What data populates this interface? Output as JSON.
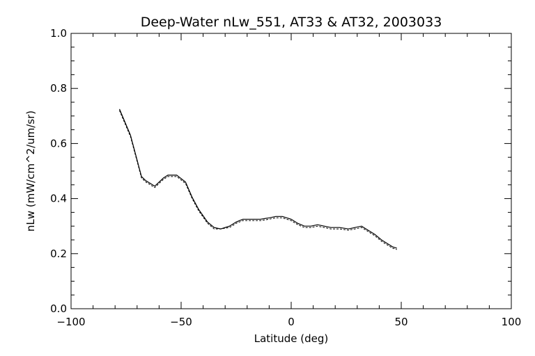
{
  "chart_data": {
    "type": "line",
    "title": "Deep-Water nLw_551, AT33 & AT32, 2003033",
    "xlabel": "Latitude (deg)",
    "ylabel": "nLw (mW/cm^2/um/sr)",
    "xlim": [
      -100,
      100
    ],
    "ylim": [
      0.0,
      1.0
    ],
    "x_ticks": [
      -100,
      -50,
      0,
      50,
      100
    ],
    "y_ticks": [
      0.0,
      0.2,
      0.4,
      0.6,
      0.8,
      1.0
    ],
    "x_tick_labels": [
      "−100",
      "−50",
      "0",
      "50",
      "100"
    ],
    "y_tick_labels": [
      "0.0",
      "0.2",
      "0.4",
      "0.6",
      "0.8",
      "1.0"
    ],
    "grid": false,
    "legend": "none",
    "series": [
      {
        "style": "solid",
        "x": [
          -78,
          -73,
          -70,
          -68,
          -66,
          -64,
          -62,
          -60,
          -58,
          -56,
          -52,
          -48,
          -45,
          -42,
          -38,
          -35,
          -32,
          -28,
          -25,
          -22,
          -18,
          -14,
          -10,
          -7,
          -4,
          -2,
          0,
          3,
          6,
          9,
          12,
          15,
          18,
          22,
          26,
          29,
          32,
          34,
          38,
          41,
          44,
          46,
          48
        ],
        "y": [
          0.725,
          0.63,
          0.54,
          0.48,
          0.465,
          0.455,
          0.445,
          0.46,
          0.475,
          0.485,
          0.485,
          0.46,
          0.405,
          0.36,
          0.315,
          0.295,
          0.29,
          0.3,
          0.315,
          0.325,
          0.325,
          0.325,
          0.33,
          0.335,
          0.335,
          0.33,
          0.325,
          0.31,
          0.3,
          0.3,
          0.305,
          0.3,
          0.295,
          0.295,
          0.29,
          0.295,
          0.3,
          0.29,
          0.27,
          0.25,
          0.235,
          0.225,
          0.22
        ]
      },
      {
        "style": "dashed",
        "x": [
          -78,
          -73,
          -70,
          -68,
          -66,
          -64,
          -62,
          -60,
          -58,
          -56,
          -52,
          -48,
          -45,
          -42,
          -38,
          -35,
          -32,
          -28,
          -25,
          -22,
          -18,
          -14,
          -10,
          -7,
          -4,
          -2,
          0,
          3,
          6,
          9,
          12,
          15,
          18,
          22,
          26,
          29,
          32,
          34,
          38,
          41,
          44,
          46,
          48
        ],
        "y": [
          0.72,
          0.625,
          0.535,
          0.475,
          0.46,
          0.45,
          0.44,
          0.455,
          0.47,
          0.48,
          0.48,
          0.455,
          0.4,
          0.355,
          0.31,
          0.29,
          0.29,
          0.295,
          0.31,
          0.32,
          0.32,
          0.32,
          0.325,
          0.33,
          0.33,
          0.325,
          0.32,
          0.305,
          0.295,
          0.295,
          0.3,
          0.295,
          0.29,
          0.29,
          0.285,
          0.29,
          0.295,
          0.285,
          0.265,
          0.245,
          0.23,
          0.22,
          0.215
        ]
      }
    ]
  }
}
